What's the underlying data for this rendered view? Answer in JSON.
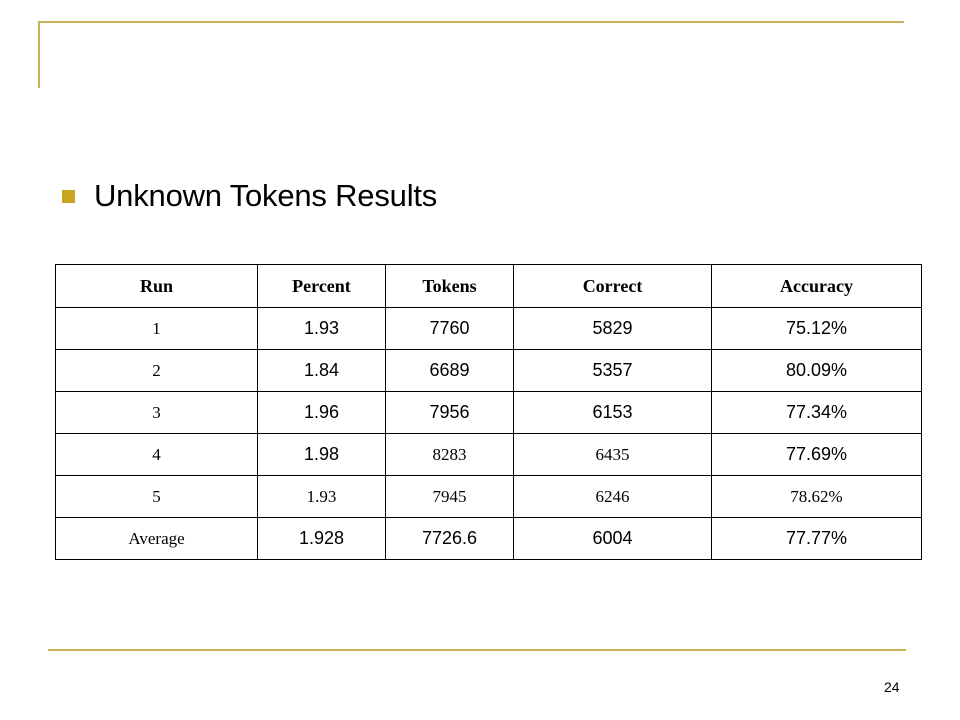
{
  "slide": {
    "title": "Unknown Tokens Results",
    "page_number": "24",
    "accent_color": "#c9b358"
  },
  "table": {
    "headers": [
      "Run",
      "Percent",
      "Tokens",
      "Correct",
      "Accuracy"
    ],
    "rows": [
      [
        "1",
        "1.93",
        "7760",
        "5829",
        "75.12%"
      ],
      [
        "2",
        "1.84",
        "6689",
        "5357",
        "80.09%"
      ],
      [
        "3",
        "1.96",
        "7956",
        "6153",
        "77.34%"
      ],
      [
        "4",
        "1.98",
        "8283",
        "6435",
        "77.69%"
      ],
      [
        "5",
        "1.93",
        "7945",
        "6246",
        "78.62%"
      ],
      [
        "Average",
        "1.928",
        "7726.6",
        "6004",
        "77.77%"
      ]
    ]
  }
}
